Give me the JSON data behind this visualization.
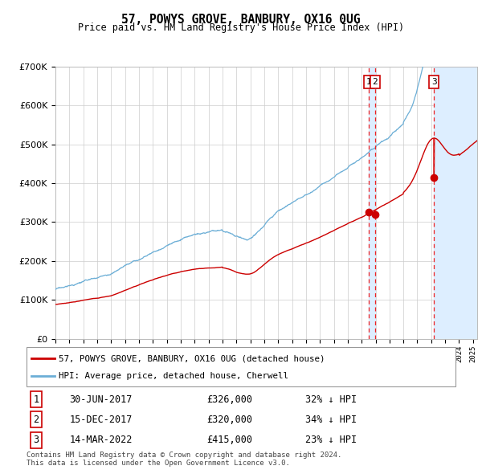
{
  "title": "57, POWYS GROVE, BANBURY, OX16 0UG",
  "subtitle": "Price paid vs. HM Land Registry's House Price Index (HPI)",
  "ylim": [
    0,
    700000
  ],
  "yticks": [
    0,
    100000,
    200000,
    300000,
    400000,
    500000,
    600000,
    700000
  ],
  "hpi_color": "#6baed6",
  "price_color": "#cc0000",
  "marker_color": "#cc0000",
  "vline_color": "#ee2222",
  "background_color": "#ffffff",
  "grid_color": "#cccccc",
  "legend_label_red": "57, POWYS GROVE, BANBURY, OX16 0UG (detached house)",
  "legend_label_blue": "HPI: Average price, detached house, Cherwell",
  "transactions": [
    {
      "id": 1,
      "date": "30-JUN-2017",
      "price": 326000,
      "hpi_pct": "32% ↓ HPI",
      "date_num": 2017.495
    },
    {
      "id": 2,
      "date": "15-DEC-2017",
      "price": 320000,
      "hpi_pct": "34% ↓ HPI",
      "date_num": 2017.956
    },
    {
      "id": 3,
      "date": "14-MAR-2022",
      "price": 415000,
      "hpi_pct": "23% ↓ HPI",
      "date_num": 2022.2
    }
  ],
  "footer1": "Contains HM Land Registry data © Crown copyright and database right 2024.",
  "footer2": "This data is licensed under the Open Government Licence v3.0.",
  "shade_color": "#ddeeff",
  "box_color": "#cc0000",
  "xlim_start": 1995,
  "xlim_end": 2025.3
}
